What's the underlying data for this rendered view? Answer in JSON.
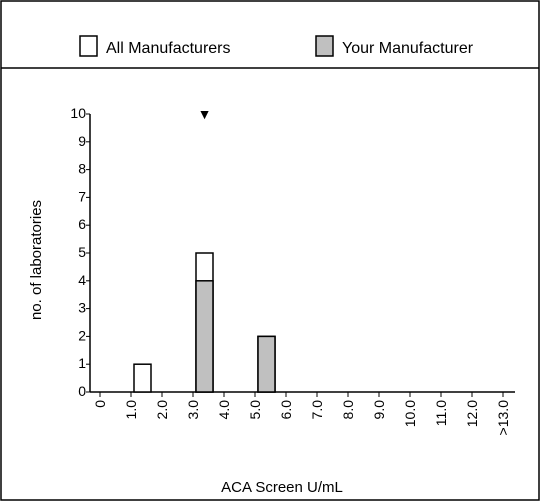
{
  "legend": {
    "all_label": "All Manufacturers",
    "yours_label": "Your Manufacturer"
  },
  "colors": {
    "all_fill": "#ffffff",
    "yours_fill": "#c0c0c0",
    "stroke": "#000000"
  },
  "chart_data": {
    "type": "bar",
    "xlabel": "ACA Screen U/mL",
    "ylabel": "no. of laboratories",
    "ylim": [
      0,
      10
    ],
    "yticks": [
      "0",
      "1",
      "2",
      "3",
      "4",
      "5",
      "6",
      "7",
      "8",
      "9",
      "10"
    ],
    "categories": [
      "0",
      "1.0",
      "2.0",
      "3.0",
      "4.0",
      "5.0",
      "6.0",
      "7.0",
      "8.0",
      "9.0",
      "10.0",
      "11.0",
      "12.0",
      ">13.0"
    ],
    "series": [
      {
        "name": "All Manufacturers",
        "values": [
          0,
          1,
          0,
          5,
          0,
          2,
          0,
          0,
          0,
          0,
          0,
          0,
          0,
          0
        ]
      },
      {
        "name": "Your Manufacturer",
        "values": [
          0,
          0,
          0,
          4,
          0,
          2,
          0,
          0,
          0,
          0,
          0,
          0,
          0,
          0
        ]
      }
    ],
    "marker": {
      "category": "3.0",
      "symbol": "▼"
    },
    "legend_position": "top"
  }
}
